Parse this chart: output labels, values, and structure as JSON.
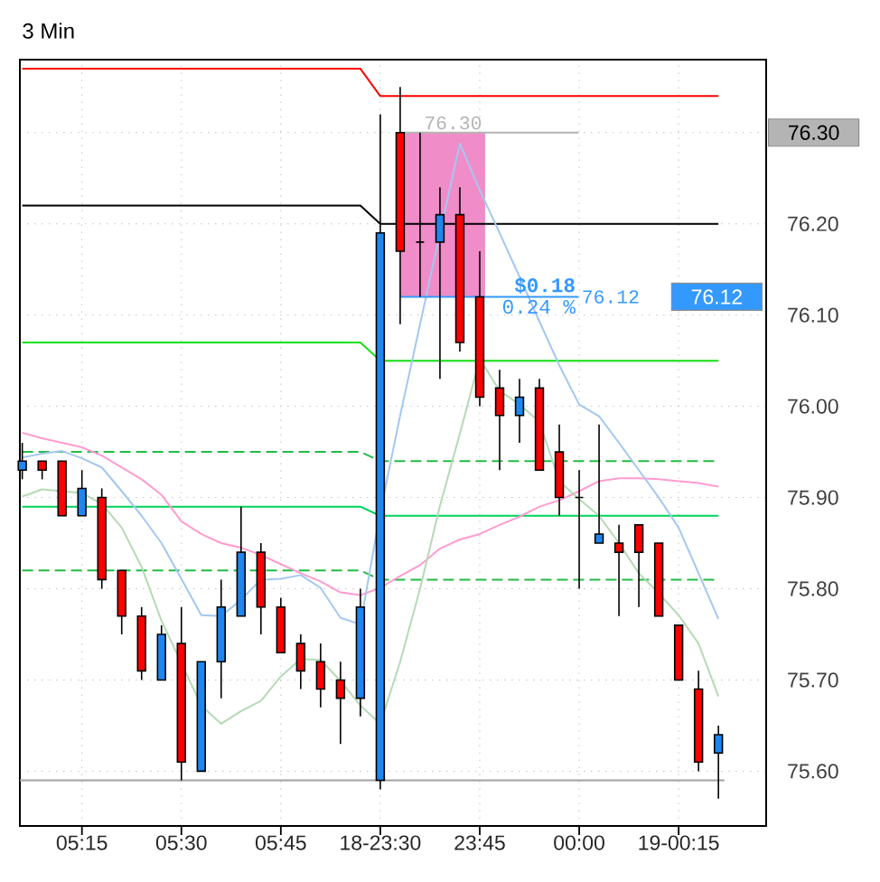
{
  "chart_data": {
    "type": "candlestick",
    "title": "3 Min",
    "categories": [
      null,
      null,
      null,
      "05:15",
      null,
      null,
      null,
      null,
      "05:30",
      null,
      null,
      null,
      null,
      "05:45",
      null,
      null,
      null,
      null,
      "18-23:30",
      null,
      null,
      null,
      null,
      "23:45",
      null,
      null,
      null,
      null,
      "00:00",
      null,
      null,
      null,
      null,
      "19-00:15",
      null,
      null
    ],
    "ohlc": [
      [
        75.93,
        75.96,
        75.92,
        75.94
      ],
      [
        75.94,
        75.94,
        75.92,
        75.93
      ],
      [
        75.94,
        75.94,
        75.88,
        75.88
      ],
      [
        75.88,
        75.93,
        75.88,
        75.91
      ],
      [
        75.9,
        75.91,
        75.8,
        75.81
      ],
      [
        75.82,
        75.82,
        75.75,
        75.77
      ],
      [
        75.77,
        75.78,
        75.7,
        75.71
      ],
      [
        75.7,
        75.76,
        75.7,
        75.75
      ],
      [
        75.74,
        75.78,
        75.59,
        75.61
      ],
      [
        75.6,
        75.72,
        75.6,
        75.72
      ],
      [
        75.72,
        75.81,
        75.68,
        75.78
      ],
      [
        75.77,
        75.89,
        75.77,
        75.84
      ],
      [
        75.84,
        75.85,
        75.75,
        75.78
      ],
      [
        75.78,
        75.79,
        75.73,
        75.73
      ],
      [
        75.74,
        75.75,
        75.69,
        75.71
      ],
      [
        75.72,
        75.74,
        75.67,
        75.69
      ],
      [
        75.7,
        75.72,
        75.63,
        75.68
      ],
      [
        75.68,
        75.8,
        75.66,
        75.78
      ],
      [
        75.59,
        76.32,
        75.58,
        76.19
      ],
      [
        76.3,
        76.35,
        76.09,
        76.17
      ],
      [
        76.18,
        76.3,
        76.12,
        76.18
      ],
      [
        76.18,
        76.24,
        76.03,
        76.21
      ],
      [
        76.21,
        76.24,
        76.06,
        76.07
      ],
      [
        76.12,
        76.17,
        76.0,
        76.01
      ],
      [
        76.02,
        76.04,
        75.93,
        75.99
      ],
      [
        75.99,
        76.03,
        75.96,
        76.01
      ],
      [
        76.02,
        76.03,
        75.93,
        75.93
      ],
      [
        75.95,
        75.98,
        75.88,
        75.9
      ],
      [
        75.9,
        75.93,
        75.8,
        75.9
      ],
      [
        75.85,
        75.98,
        75.85,
        75.86
      ],
      [
        75.85,
        75.87,
        75.77,
        75.84
      ],
      [
        75.87,
        75.87,
        75.78,
        75.84
      ],
      [
        75.85,
        75.85,
        75.77,
        75.77
      ],
      [
        75.76,
        75.76,
        75.7,
        75.7
      ],
      [
        75.69,
        75.71,
        75.6,
        75.61
      ],
      [
        75.62,
        75.65,
        75.57,
        75.64
      ]
    ],
    "colors": [
      "#1e86f0",
      "#ff0000",
      "#ff0000",
      "#1e86f0",
      "#ff0000",
      "#ff0000",
      "#ff0000",
      "#1e86f0",
      "#ff0000",
      "#1e86f0",
      "#1e86f0",
      "#1e86f0",
      "#ff0000",
      "#ff0000",
      "#ff0000",
      "#ff0000",
      "#ff0000",
      "#1e86f0",
      "#1e86f0",
      "#ff0000",
      "#000000",
      "#1e86f0",
      "#ff0000",
      "#ff0000",
      "#ff0000",
      "#1e86f0",
      "#ff0000",
      "#ff0000",
      "#000000",
      "#1e86f0",
      "#ff0000",
      "#ff0000",
      "#ff0000",
      "#ff0000",
      "#ff0000",
      "#1e86f0"
    ],
    "series": [
      {
        "type": "line",
        "color": "#ff0000",
        "values": [
          76.37,
          76.37,
          76.37,
          76.37,
          76.37,
          76.37,
          76.37,
          76.37,
          76.37,
          76.37,
          76.37,
          76.37,
          76.37,
          76.37,
          76.37,
          76.37,
          76.37,
          76.37,
          76.34,
          76.34,
          76.34,
          76.34,
          76.34,
          76.34,
          76.34,
          76.34,
          76.34,
          76.34,
          76.34,
          76.34,
          76.34,
          76.34,
          76.34,
          76.34,
          76.34,
          76.34
        ]
      },
      {
        "type": "line",
        "color": "#000000",
        "values": [
          76.22,
          76.22,
          76.22,
          76.22,
          76.22,
          76.22,
          76.22,
          76.22,
          76.22,
          76.22,
          76.22,
          76.22,
          76.22,
          76.22,
          76.22,
          76.22,
          76.22,
          76.22,
          76.2,
          76.2,
          76.2,
          76.2,
          76.2,
          76.2,
          76.2,
          76.2,
          76.2,
          76.2,
          76.2,
          76.2,
          76.2,
          76.2,
          76.2,
          76.2,
          76.2,
          76.2
        ]
      },
      {
        "type": "line",
        "color": "#10e010",
        "values": [
          76.07,
          76.07,
          76.07,
          76.07,
          76.07,
          76.07,
          76.07,
          76.07,
          76.07,
          76.07,
          76.07,
          76.07,
          76.07,
          76.07,
          76.07,
          76.07,
          76.07,
          76.07,
          76.05,
          76.05,
          76.05,
          76.05,
          76.05,
          76.05,
          76.05,
          76.05,
          76.05,
          76.05,
          76.05,
          76.05,
          76.05,
          76.05,
          76.05,
          76.05,
          76.05,
          76.05
        ]
      },
      {
        "type": "line",
        "color": "#00d25a",
        "values": [
          75.89,
          75.89,
          75.89,
          75.89,
          75.89,
          75.89,
          75.89,
          75.89,
          75.89,
          75.89,
          75.89,
          75.89,
          75.89,
          75.89,
          75.89,
          75.89,
          75.89,
          75.89,
          75.88,
          75.88,
          75.88,
          75.88,
          75.88,
          75.88,
          75.88,
          75.88,
          75.88,
          75.88,
          75.88,
          75.88,
          75.88,
          75.88,
          75.88,
          75.88,
          75.88,
          75.88
        ]
      },
      {
        "type": "line",
        "color": "#22bb44",
        "line_style": "dashed",
        "values": [
          75.95,
          75.95,
          75.95,
          75.95,
          75.95,
          75.95,
          75.95,
          75.95,
          75.95,
          75.95,
          75.95,
          75.95,
          75.95,
          75.95,
          75.95,
          75.95,
          75.95,
          75.95,
          75.94,
          75.94,
          75.94,
          75.94,
          75.94,
          75.94,
          75.94,
          75.94,
          75.94,
          75.94,
          75.94,
          75.94,
          75.94,
          75.94,
          75.94,
          75.94,
          75.94,
          75.94
        ]
      },
      {
        "type": "line",
        "color": "#22bb44",
        "line_style": "dashed",
        "values": [
          75.82,
          75.82,
          75.82,
          75.82,
          75.82,
          75.82,
          75.82,
          75.82,
          75.82,
          75.82,
          75.82,
          75.82,
          75.82,
          75.82,
          75.82,
          75.82,
          75.82,
          75.82,
          75.81,
          75.81,
          75.81,
          75.81,
          75.81,
          75.81,
          75.81,
          75.81,
          75.81,
          75.81,
          75.81,
          75.81,
          75.81,
          75.81,
          75.81,
          75.81,
          75.81,
          75.81
        ]
      },
      {
        "type": "line",
        "color": "#ff9ccf",
        "values": [
          75.971,
          75.965,
          75.96,
          75.955,
          75.946,
          75.933,
          75.92,
          75.903,
          75.874,
          75.86,
          75.85,
          75.845,
          75.837,
          75.827,
          75.817,
          75.808,
          75.796,
          75.793,
          75.801,
          75.814,
          75.826,
          75.844,
          75.854,
          75.86,
          75.87,
          75.879,
          75.89,
          75.897,
          75.907,
          75.918,
          75.921,
          75.921,
          75.92,
          75.918,
          75.916,
          75.912
        ]
      },
      {
        "type": "line",
        "color": "#b5dab5",
        "values": [
          75.901,
          75.909,
          75.907,
          75.905,
          75.893,
          75.867,
          75.824,
          75.765,
          null,
          75.672,
          75.652,
          75.666,
          75.677,
          75.704,
          75.723,
          75.722,
          75.699,
          75.672,
          75.652,
          75.72,
          75.8,
          75.891,
          75.97,
          76.052,
          76.017,
          76.002,
          75.983,
          75.918,
          75.898,
          75.88,
          75.85,
          75.817,
          75.795,
          75.771,
          75.74,
          75.682
        ]
      },
      {
        "type": "line",
        "color": "#a4c8f0",
        "values": [
          75.944,
          75.948,
          75.951,
          75.943,
          75.933,
          75.907,
          75.88,
          75.85,
          75.811,
          75.771,
          75.77,
          75.788,
          75.81,
          75.811,
          75.815,
          75.801,
          75.768,
          75.761,
          75.884,
          75.99,
          76.09,
          76.19,
          76.288,
          76.237,
          76.19,
          76.142,
          76.093,
          76.045,
          76.002,
          75.989,
          75.96,
          75.93,
          75.9,
          75.867,
          75.817,
          75.767
        ]
      }
    ],
    "ylim": [
      75.54,
      76.38
    ],
    "yticks": [
      {
        "value": 75.6,
        "label": "75.60"
      },
      {
        "value": 75.7,
        "label": "75.70"
      },
      {
        "value": 75.8,
        "label": "75.80"
      },
      {
        "value": 75.9,
        "label": "75.90"
      },
      {
        "value": 76.0,
        "label": "76.00"
      },
      {
        "value": 76.1,
        "label": "76.10"
      },
      {
        "value": 76.2,
        "label": "76.20"
      },
      {
        "value": 76.3,
        "label": null
      }
    ],
    "grid": true,
    "ref_lines": [
      {
        "axis": "y",
        "value": 75.59,
        "color": "#a0a0a0"
      },
      {
        "axis": "y",
        "value": 76.3,
        "label": "76.30",
        "color": "#b4b4b4"
      },
      {
        "axis": "y",
        "value": 76.12,
        "label": "76.12",
        "color": "#3399ff"
      }
    ],
    "bands": [
      {
        "axis": "y",
        "from": 76.12,
        "to": 76.3,
        "label": "$0.18",
        "color": "#f08cc8"
      }
    ],
    "annotations": [
      "76.30",
      "76.12",
      "0.24 %"
    ]
  }
}
